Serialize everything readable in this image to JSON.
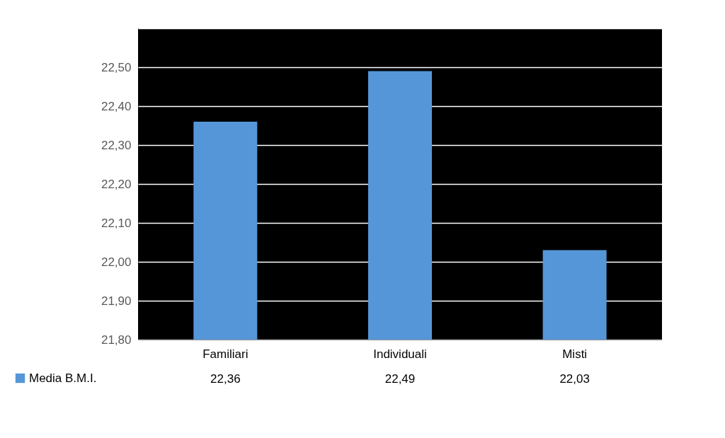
{
  "chart_data": {
    "type": "bar",
    "categories": [
      "Familiari",
      "Individuali",
      "Misti"
    ],
    "series": [
      {
        "name": "Media B.M.I.",
        "color": "#5596d8",
        "values": [
          22.36,
          22.49,
          22.03
        ]
      }
    ],
    "value_labels": [
      "22,36",
      "22,49",
      "22,03"
    ],
    "ylim": [
      21.8,
      22.6
    ],
    "yticks": [
      {
        "value": 21.8,
        "label": "21,80"
      },
      {
        "value": 21.9,
        "label": "21,90"
      },
      {
        "value": 22.0,
        "label": "22,00"
      },
      {
        "value": 22.1,
        "label": "22,10"
      },
      {
        "value": 22.2,
        "label": "22,20"
      },
      {
        "value": 22.3,
        "label": "22,30"
      },
      {
        "value": 22.4,
        "label": "22,40"
      },
      {
        "value": 22.5,
        "label": "22,50"
      },
      {
        "value": 22.6,
        "label": null
      }
    ],
    "grid": "y",
    "legend": "bottom left"
  }
}
